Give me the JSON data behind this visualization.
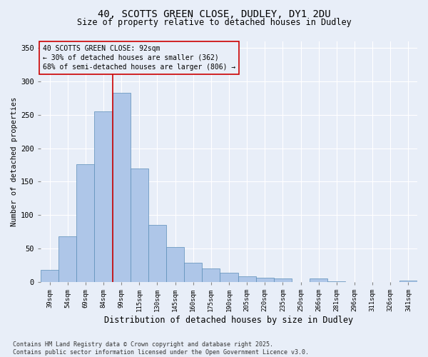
{
  "title1": "40, SCOTTS GREEN CLOSE, DUDLEY, DY1 2DU",
  "title2": "Size of property relative to detached houses in Dudley",
  "xlabel": "Distribution of detached houses by size in Dudley",
  "ylabel": "Number of detached properties",
  "categories": [
    "39sqm",
    "54sqm",
    "69sqm",
    "84sqm",
    "99sqm",
    "115sqm",
    "130sqm",
    "145sqm",
    "160sqm",
    "175sqm",
    "190sqm",
    "205sqm",
    "220sqm",
    "235sqm",
    "250sqm",
    "266sqm",
    "281sqm",
    "296sqm",
    "311sqm",
    "326sqm",
    "341sqm"
  ],
  "values": [
    18,
    68,
    176,
    255,
    283,
    170,
    85,
    52,
    29,
    20,
    14,
    9,
    7,
    6,
    0,
    5,
    1,
    0,
    0,
    0,
    2
  ],
  "bar_color": "#aec6e8",
  "bar_edge_color": "#5b8db8",
  "bg_color": "#e8eef8",
  "grid_color": "#ffffff",
  "annotation_line1": "40 SCOTTS GREEN CLOSE: 92sqm",
  "annotation_line2": "← 30% of detached houses are smaller (362)",
  "annotation_line3": "68% of semi-detached houses are larger (806) →",
  "vline_color": "#cc0000",
  "box_edge_color": "#cc0000",
  "footnote": "Contains HM Land Registry data © Crown copyright and database right 2025.\nContains public sector information licensed under the Open Government Licence v3.0.",
  "ylim": [
    0,
    360
  ],
  "yticks": [
    0,
    50,
    100,
    150,
    200,
    250,
    300,
    350
  ],
  "vline_x": 3.5
}
